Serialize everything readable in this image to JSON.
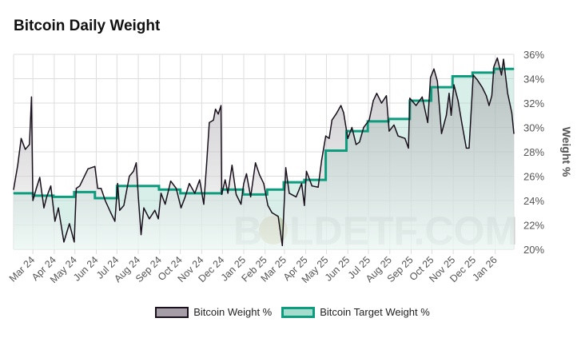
{
  "title": "Bitcoin Daily Weight",
  "watermark": "BOLDETF.COM",
  "colors": {
    "bitcoin_line": "#1a0f1c",
    "bitcoin_fill": "#a59ea6",
    "target_line": "#0e9c7e",
    "target_fill": "#a6dccd",
    "grid": "#dddddd"
  },
  "chart_data": {
    "type": "line",
    "title": "Bitcoin Daily Weight",
    "xlabel": "",
    "ylabel": "Weight %",
    "x_unit": "days since 2024-03-01",
    "xlim": [
      -28,
      698
    ],
    "ylim": [
      20,
      36
    ],
    "yticks": [
      20,
      22,
      24,
      26,
      28,
      30,
      32,
      34,
      36
    ],
    "ytick_labels": [
      "20%",
      "22%",
      "24%",
      "26%",
      "28%",
      "30%",
      "32%",
      "34%",
      "36%"
    ],
    "xticks": [
      0,
      31,
      61,
      92,
      122,
      153,
      184,
      214,
      245,
      275,
      306,
      337,
      365,
      396,
      426,
      457,
      487,
      518,
      549,
      579,
      610,
      640,
      671
    ],
    "xtick_labels": [
      "Mar 24",
      "Apr 24",
      "May 24",
      "Jun 24",
      "Jul 24",
      "Aug 24",
      "Sep 24",
      "Oct 24",
      "Nov 24",
      "Dec 24",
      "Jan 25",
      "Feb 25",
      "Mar 25",
      "Apr 25",
      "May 25",
      "Jun 25",
      "Jul 25",
      "Aug 25",
      "Sep 25",
      "Oct 25",
      "Nov 25",
      "Dec 25",
      "Jan 26"
    ],
    "grid": true,
    "legend_position": "bottom",
    "series": [
      {
        "name": "Bitcoin Weight %",
        "points": [
          [
            -28,
            24.9
          ],
          [
            -22,
            26.9
          ],
          [
            -17,
            29.1
          ],
          [
            -11,
            28.2
          ],
          [
            -5,
            28.6
          ],
          [
            -2,
            32.5
          ],
          [
            0,
            24.0
          ],
          [
            5,
            25.0
          ],
          [
            10,
            25.9
          ],
          [
            16,
            23.4
          ],
          [
            20,
            24.3
          ],
          [
            26,
            25.2
          ],
          [
            32,
            22.3
          ],
          [
            37,
            23.4
          ],
          [
            45,
            20.6
          ],
          [
            53,
            22.1
          ],
          [
            60,
            20.6
          ],
          [
            63,
            25.0
          ],
          [
            68,
            25.2
          ],
          [
            80,
            26.6
          ],
          [
            90,
            26.8
          ],
          [
            94,
            25.0
          ],
          [
            99,
            25.0
          ],
          [
            105,
            24.0
          ],
          [
            113,
            23.0
          ],
          [
            119,
            22.3
          ],
          [
            123,
            25.4
          ],
          [
            126,
            23.2
          ],
          [
            132,
            23.6
          ],
          [
            140,
            26.0
          ],
          [
            146,
            26.4
          ],
          [
            150,
            27.1
          ],
          [
            153,
            24.3
          ],
          [
            157,
            21.2
          ],
          [
            161,
            23.4
          ],
          [
            169,
            22.5
          ],
          [
            177,
            23.2
          ],
          [
            182,
            22.5
          ],
          [
            186,
            24.6
          ],
          [
            192,
            23.7
          ],
          [
            200,
            25.6
          ],
          [
            208,
            25.0
          ],
          [
            215,
            23.4
          ],
          [
            221,
            24.3
          ],
          [
            227,
            25.4
          ],
          [
            235,
            24.6
          ],
          [
            242,
            25.7
          ],
          [
            248,
            23.7
          ],
          [
            252,
            26.9
          ],
          [
            256,
            30.4
          ],
          [
            262,
            30.6
          ],
          [
            265,
            31.5
          ],
          [
            269,
            31.1
          ],
          [
            273,
            31.8
          ],
          [
            274,
            24.5
          ],
          [
            279,
            25.7
          ],
          [
            283,
            24.6
          ],
          [
            289,
            26.9
          ],
          [
            295,
            24.5
          ],
          [
            302,
            23.7
          ],
          [
            306,
            25.4
          ],
          [
            310,
            26.2
          ],
          [
            316,
            24.3
          ],
          [
            323,
            27.1
          ],
          [
            329,
            26.1
          ],
          [
            335,
            25.4
          ],
          [
            341,
            23.6
          ],
          [
            347,
            23.0
          ],
          [
            356,
            22.7
          ],
          [
            362,
            20.3
          ],
          [
            367,
            26.7
          ],
          [
            372,
            24.6
          ],
          [
            382,
            24.3
          ],
          [
            390,
            25.4
          ],
          [
            394,
            23.6
          ],
          [
            397,
            26.4
          ],
          [
            405,
            25.2
          ],
          [
            414,
            25.1
          ],
          [
            419,
            27.3
          ],
          [
            425,
            29.3
          ],
          [
            430,
            29.1
          ],
          [
            434,
            30.6
          ],
          [
            440,
            31.1
          ],
          [
            447,
            31.8
          ],
          [
            451,
            31.2
          ],
          [
            457,
            29.1
          ],
          [
            463,
            30.0
          ],
          [
            469,
            28.6
          ],
          [
            474,
            28.8
          ],
          [
            480,
            30.0
          ],
          [
            488,
            30.6
          ],
          [
            494,
            32.2
          ],
          [
            499,
            32.8
          ],
          [
            506,
            32.0
          ],
          [
            513,
            32.6
          ],
          [
            517,
            29.7
          ],
          [
            524,
            30.2
          ],
          [
            530,
            29.3
          ],
          [
            540,
            29.1
          ],
          [
            545,
            28.3
          ],
          [
            547,
            32.4
          ],
          [
            556,
            31.8
          ],
          [
            565,
            32.5
          ],
          [
            573,
            30.4
          ],
          [
            577,
            34.1
          ],
          [
            582,
            34.8
          ],
          [
            587,
            33.8
          ],
          [
            593,
            29.5
          ],
          [
            600,
            31.0
          ],
          [
            604,
            32.8
          ],
          [
            607,
            31.0
          ],
          [
            611,
            33.5
          ],
          [
            617,
            32.2
          ],
          [
            623,
            30.2
          ],
          [
            629,
            28.3
          ],
          [
            633,
            28.3
          ],
          [
            639,
            34.3
          ],
          [
            645,
            33.9
          ],
          [
            652,
            33.3
          ],
          [
            658,
            32.6
          ],
          [
            662,
            31.8
          ],
          [
            666,
            32.6
          ],
          [
            669,
            35.0
          ],
          [
            674,
            35.7
          ],
          [
            680,
            34.3
          ],
          [
            683,
            35.6
          ],
          [
            689,
            32.8
          ],
          [
            695,
            31.2
          ],
          [
            698,
            29.5
          ]
        ]
      },
      {
        "name": "Bitcoin Target Weight %",
        "step": true,
        "points": [
          [
            -28,
            24.6
          ],
          [
            0,
            24.4
          ],
          [
            30,
            24.3
          ],
          [
            60,
            24.7
          ],
          [
            90,
            24.2
          ],
          [
            122,
            25.2
          ],
          [
            183,
            24.9
          ],
          [
            214,
            24.6
          ],
          [
            274,
            24.9
          ],
          [
            305,
            24.5
          ],
          [
            340,
            24.9
          ],
          [
            364,
            25.5
          ],
          [
            394,
            25.7
          ],
          [
            425,
            28.1
          ],
          [
            455,
            29.7
          ],
          [
            486,
            30.5
          ],
          [
            516,
            30.7
          ],
          [
            547,
            32.2
          ],
          [
            578,
            33.3
          ],
          [
            609,
            34.2
          ],
          [
            638,
            34.5
          ],
          [
            669,
            34.8
          ],
          [
            698,
            34.8
          ]
        ]
      }
    ]
  }
}
